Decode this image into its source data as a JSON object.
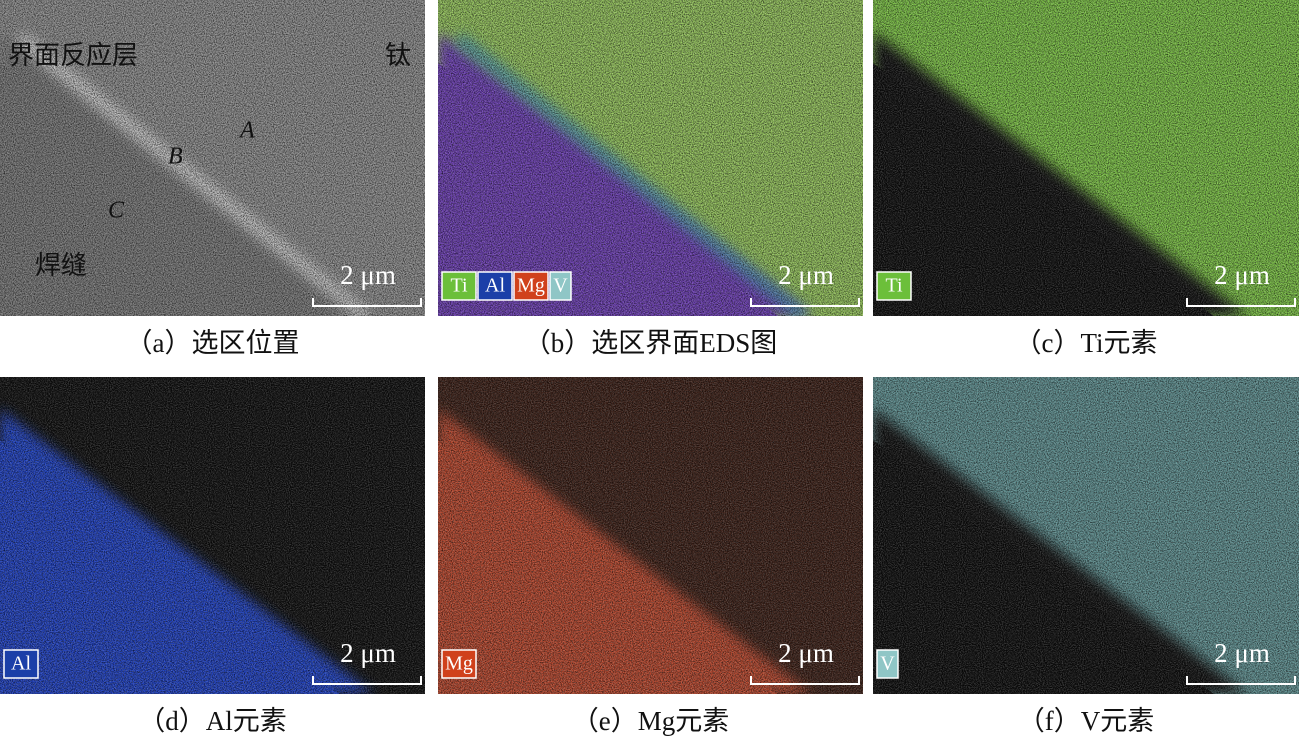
{
  "panels": [
    {
      "caption": "（a）选区位置",
      "scale_bar": "2 μm",
      "annotations": [
        "界面反应层",
        "钛",
        "A",
        "B",
        "C",
        "焊缝"
      ]
    },
    {
      "caption": "（b）选区界面EDS图",
      "scale_bar": "2 μm",
      "tags": [
        "Ti",
        "Al",
        "Mg",
        "V"
      ]
    },
    {
      "caption": "（c）Ti元素",
      "scale_bar": "2 μm",
      "tags": [
        "Ti"
      ]
    },
    {
      "caption": "（d）Al元素",
      "scale_bar": "2 μm",
      "tags": [
        "Al"
      ]
    },
    {
      "caption": "（e）Mg元素",
      "scale_bar": "2 μm",
      "tags": [
        "Mg"
      ]
    },
    {
      "caption": "（f）V元素",
      "scale_bar": "2 μm",
      "tags": [
        "V"
      ]
    }
  ]
}
